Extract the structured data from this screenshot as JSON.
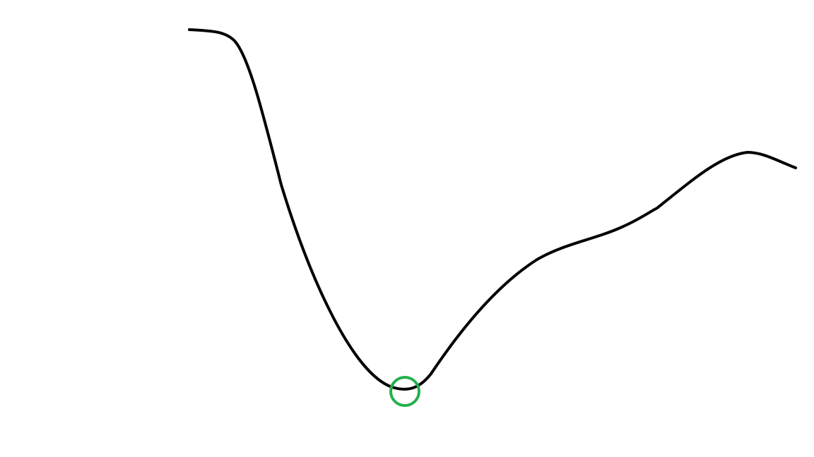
{
  "diagram": {
    "curve": {
      "color": "#000000",
      "description_of_shape": ""
    },
    "marker": {
      "shape": "circle",
      "color": "#22b14c",
      "meaning": "minimum"
    },
    "background_color": "#ffffff"
  }
}
